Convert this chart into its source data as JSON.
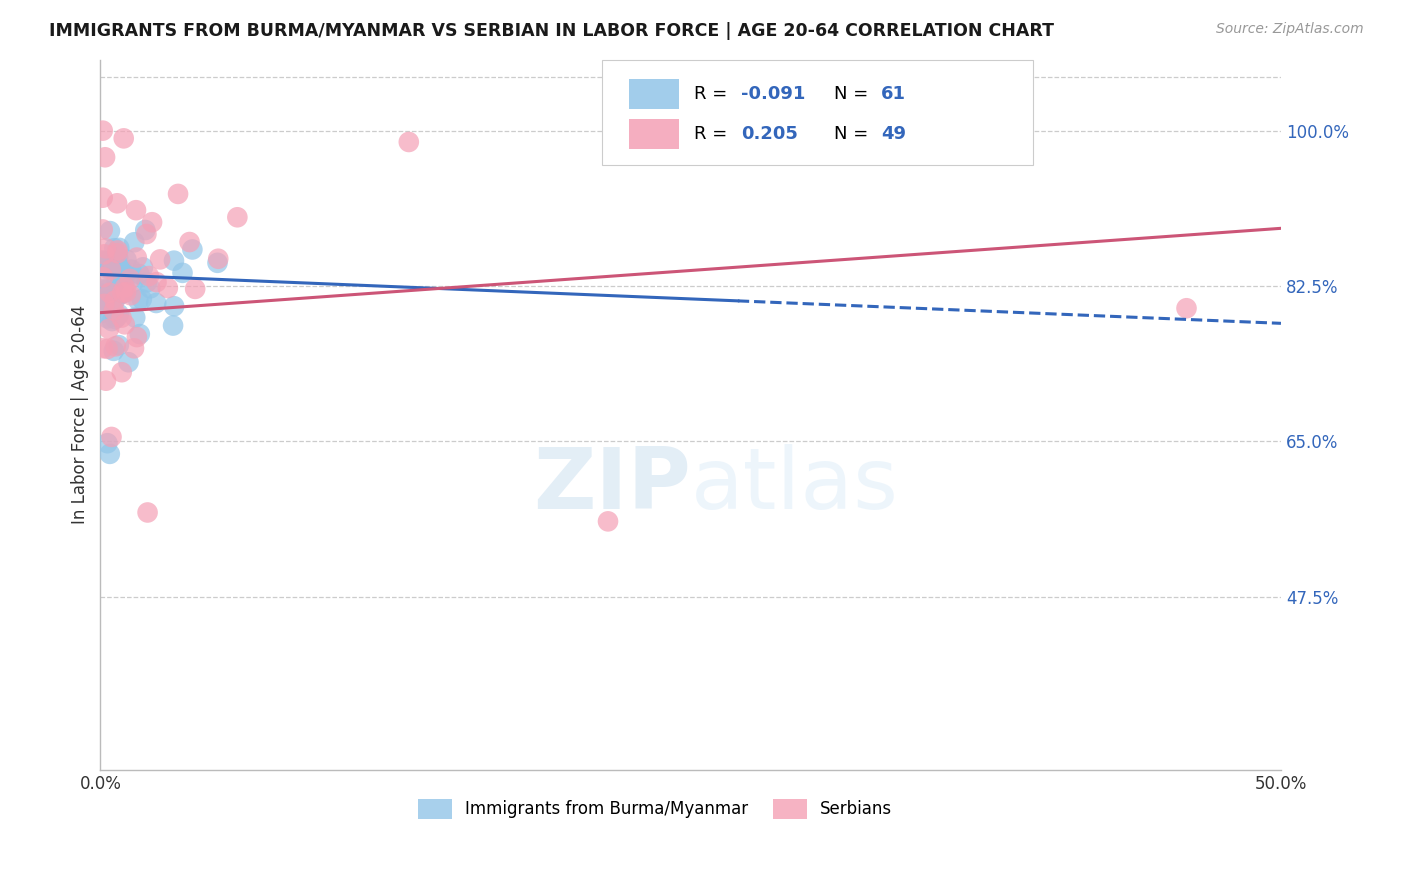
{
  "title": "IMMIGRANTS FROM BURMA/MYANMAR VS SERBIAN IN LABOR FORCE | AGE 20-64 CORRELATION CHART",
  "source": "Source: ZipAtlas.com",
  "ylabel": "In Labor Force | Age 20-64",
  "xlim": [
    0.0,
    0.5
  ],
  "ylim": [
    0.28,
    1.08
  ],
  "yticks_right": [
    1.0,
    0.825,
    0.65,
    0.475
  ],
  "ytick_labels_right": [
    "100.0%",
    "82.5%",
    "65.0%",
    "47.5%"
  ],
  "grid_color": "#cccccc",
  "background_color": "#ffffff",
  "blue_color": "#92C5E8",
  "pink_color": "#F4A0B5",
  "blue_trend_color": "#3366BB",
  "pink_trend_color": "#CC5577",
  "blue_R": "-0.091",
  "blue_N": "61",
  "pink_R": "0.205",
  "pink_N": "49",
  "legend_label_blue": "Immigrants from Burma/Myanmar",
  "legend_label_pink": "Serbians",
  "watermark_zip": "ZIP",
  "watermark_atlas": "atlas"
}
